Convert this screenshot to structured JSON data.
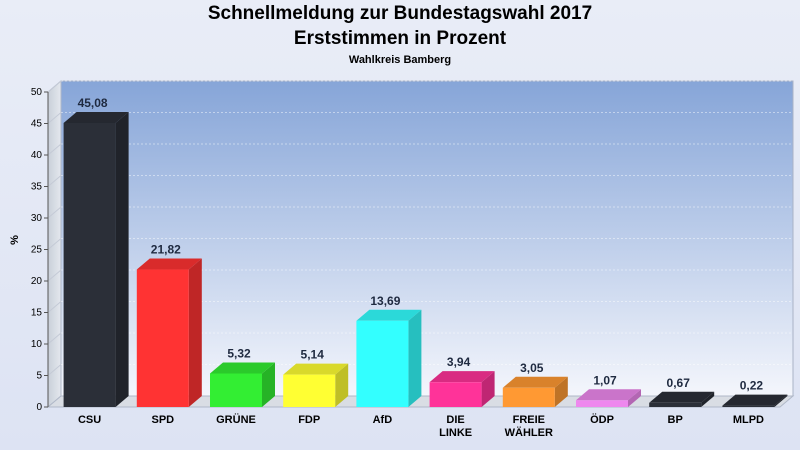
{
  "chart_data": {
    "type": "bar",
    "title": "Schnellmeldung zur Bundestagswahl 2017",
    "subtitle": "Erststimmen in Prozent",
    "subsubtitle": "Wahlkreis Bamberg",
    "ylabel": "%",
    "ylim": [
      0,
      50
    ],
    "yticks": [
      0,
      5,
      10,
      15,
      20,
      25,
      30,
      35,
      40,
      45,
      50
    ],
    "grid": true,
    "categories": [
      [
        "CSU"
      ],
      [
        "SPD"
      ],
      [
        "GRÜNE"
      ],
      [
        "FDP"
      ],
      [
        "AfD"
      ],
      [
        "DIE",
        "LINKE"
      ],
      [
        "FREIE",
        "WÄHLER"
      ],
      [
        "ÖDP"
      ],
      [
        "BP"
      ],
      [
        "MLPD"
      ]
    ],
    "values": [
      45.08,
      21.82,
      5.32,
      5.14,
      13.69,
      3.94,
      3.05,
      1.07,
      0.67,
      0.22
    ],
    "value_labels": [
      "45,08",
      "21,82",
      "5,32",
      "5,14",
      "13,69",
      "3,94",
      "3,05",
      "1,07",
      "0,67",
      "0,22"
    ],
    "colors": [
      "#2b2f38",
      "#ff3333",
      "#33ee33",
      "#ffff33",
      "#33ffff",
      "#ff3399",
      "#ff9933",
      "#ee88ee",
      "#2b2f38",
      "#2b2f38"
    ]
  }
}
